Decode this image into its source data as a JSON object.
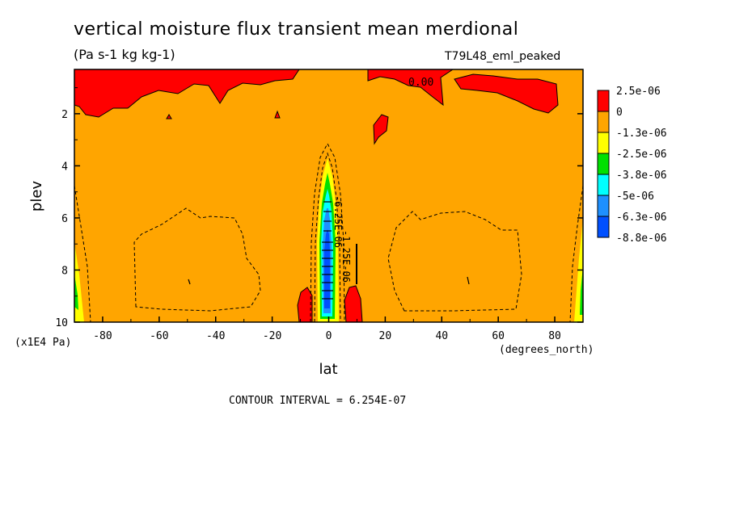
{
  "header": {
    "title": "vertical moisture flux transient mean merdional",
    "units": "(Pa s-1 kg kg-1)",
    "dataset": "T79L48_eml_peaked"
  },
  "footer": {
    "contour_interval": "CONTOUR INTERVAL = 6.254E-07"
  },
  "colors": {
    "background": "#ffffff",
    "frame": "#000000",
    "levels": [
      "#ff0000",
      "#ffa500",
      "#ffff00",
      "#00e000",
      "#00ffff",
      "#1e90ff",
      "#0050ff"
    ]
  },
  "chart_data": {
    "type": "heatmap",
    "title": "vertical moisture flux transient mean merdional",
    "xlabel": "lat",
    "xunits": "(degrees_north)",
    "ylabel": "plev",
    "yunits": "(x1E4 Pa)",
    "xlim": [
      -90,
      90
    ],
    "ylim": [
      0.3,
      10
    ],
    "y_inverted": true,
    "xticks": [
      -80,
      -60,
      -40,
      -20,
      0,
      20,
      40,
      60,
      80
    ],
    "yticks": [
      2,
      4,
      6,
      8,
      10
    ],
    "contour_labels": [
      "0.00",
      "-6.25E-06",
      "-1.25E-06"
    ],
    "colorbar": {
      "labels": [
        "2.5e-06",
        "0",
        "-1.3e-06",
        "-2.5e-06",
        "-3.8e-06",
        "-5e-06",
        "-6.3e-06",
        "-8.8e-06"
      ],
      "colors": [
        "#ff0000",
        "#ffa500",
        "#ffff00",
        "#00e000",
        "#00ffff",
        "#1e90ff",
        "#0050ff"
      ]
    },
    "regions": [
      {
        "name": "background",
        "level": "0 to -1.3e-06",
        "color": "#ffa500"
      },
      {
        "name": "top-positive-flux",
        "level": "0 to 2.5e-06",
        "color": "#ff0000"
      },
      {
        "name": "equatorial-negative-core",
        "level": "down to -8.8e-06",
        "color": "#0050ff"
      }
    ]
  }
}
